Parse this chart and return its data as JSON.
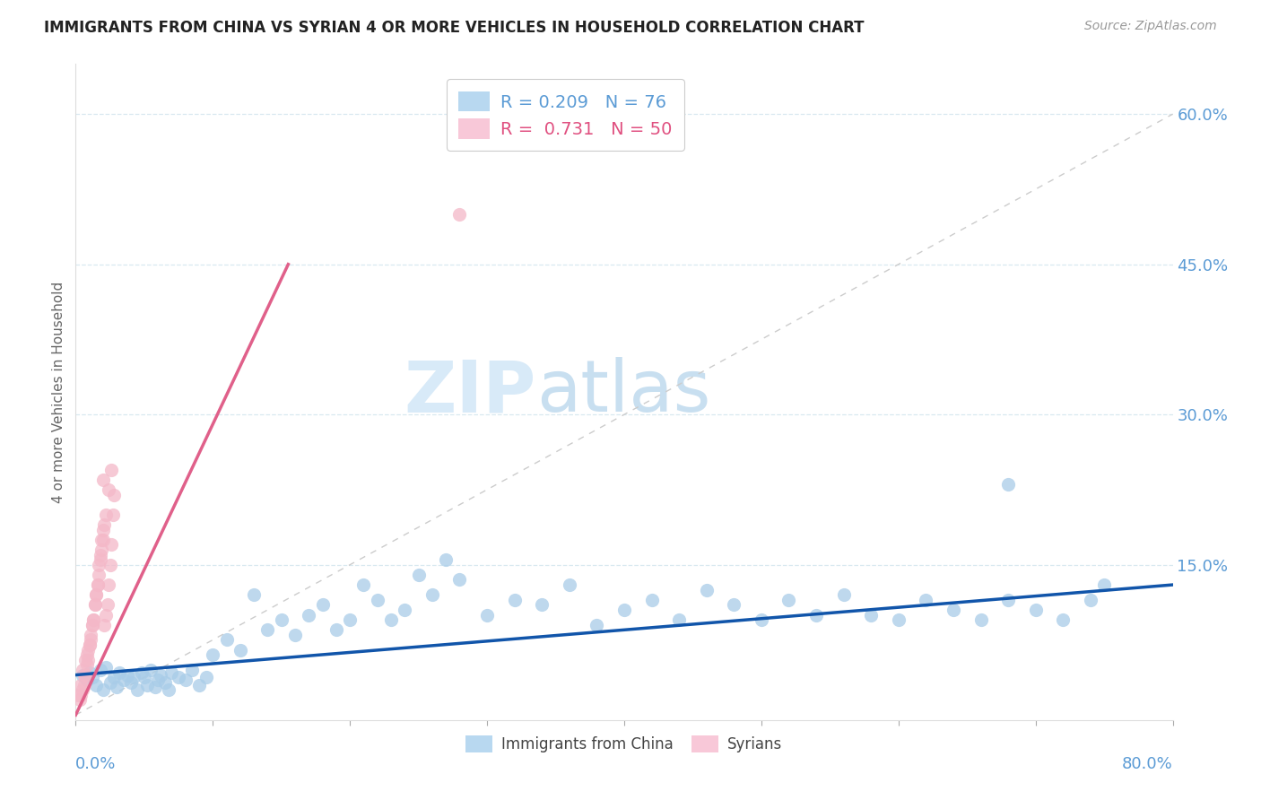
{
  "title": "IMMIGRANTS FROM CHINA VS SYRIAN 4 OR MORE VEHICLES IN HOUSEHOLD CORRELATION CHART",
  "source": "Source: ZipAtlas.com",
  "ylabel": "4 or more Vehicles in Household",
  "ytick_vals": [
    0.15,
    0.3,
    0.45,
    0.6
  ],
  "ytick_labels": [
    "15.0%",
    "30.0%",
    "45.0%",
    "60.0%"
  ],
  "xlim": [
    0.0,
    0.8
  ],
  "ylim": [
    -0.005,
    0.65
  ],
  "china_color": "#a8cce8",
  "syrian_color": "#f4b8c8",
  "china_line_color": "#1155aa",
  "syrian_line_color": "#e0608a",
  "axis_color": "#5b9bd5",
  "grid_color": "#d8e8f0",
  "ref_line_color": "#cccccc",
  "watermark_color": "#d8eaf8",
  "title_color": "#222222",
  "source_color": "#999999",
  "legend_china_label": "R = 0.209   N = 76",
  "legend_syrian_label": "R =  0.731   N = 50",
  "legend_china_color": "#5b9bd5",
  "legend_syrian_color": "#e05080",
  "bottom_legend_label_china": "Immigrants from China",
  "bottom_legend_label_syrian": "Syrians",
  "china_x": [
    0.005,
    0.008,
    0.01,
    0.012,
    0.015,
    0.018,
    0.02,
    0.022,
    0.025,
    0.028,
    0.03,
    0.032,
    0.035,
    0.038,
    0.04,
    0.042,
    0.045,
    0.048,
    0.05,
    0.052,
    0.055,
    0.058,
    0.06,
    0.062,
    0.065,
    0.068,
    0.07,
    0.075,
    0.08,
    0.085,
    0.09,
    0.095,
    0.1,
    0.11,
    0.12,
    0.13,
    0.14,
    0.15,
    0.16,
    0.17,
    0.18,
    0.19,
    0.2,
    0.21,
    0.22,
    0.23,
    0.24,
    0.25,
    0.26,
    0.27,
    0.28,
    0.3,
    0.32,
    0.34,
    0.36,
    0.38,
    0.4,
    0.42,
    0.44,
    0.46,
    0.48,
    0.5,
    0.52,
    0.54,
    0.56,
    0.58,
    0.6,
    0.62,
    0.64,
    0.66,
    0.68,
    0.7,
    0.72,
    0.74,
    0.68,
    0.75
  ],
  "china_y": [
    0.04,
    0.035,
    0.042,
    0.038,
    0.03,
    0.045,
    0.025,
    0.048,
    0.032,
    0.038,
    0.028,
    0.042,
    0.035,
    0.04,
    0.032,
    0.038,
    0.025,
    0.042,
    0.038,
    0.03,
    0.045,
    0.028,
    0.035,
    0.04,
    0.032,
    0.025,
    0.042,
    0.038,
    0.035,
    0.045,
    0.03,
    0.038,
    0.06,
    0.075,
    0.065,
    0.12,
    0.085,
    0.095,
    0.08,
    0.1,
    0.11,
    0.085,
    0.095,
    0.13,
    0.115,
    0.095,
    0.105,
    0.14,
    0.12,
    0.155,
    0.135,
    0.1,
    0.115,
    0.11,
    0.13,
    0.09,
    0.105,
    0.115,
    0.095,
    0.125,
    0.11,
    0.095,
    0.115,
    0.1,
    0.12,
    0.1,
    0.095,
    0.115,
    0.105,
    0.095,
    0.115,
    0.105,
    0.095,
    0.115,
    0.23,
    0.13
  ],
  "syrian_x": [
    0.002,
    0.004,
    0.005,
    0.006,
    0.007,
    0.008,
    0.009,
    0.01,
    0.011,
    0.012,
    0.013,
    0.014,
    0.015,
    0.016,
    0.017,
    0.018,
    0.019,
    0.02,
    0.021,
    0.022,
    0.023,
    0.024,
    0.025,
    0.026,
    0.027,
    0.028,
    0.003,
    0.005,
    0.007,
    0.009,
    0.011,
    0.013,
    0.015,
    0.017,
    0.019,
    0.021,
    0.004,
    0.006,
    0.008,
    0.01,
    0.012,
    0.014,
    0.016,
    0.018,
    0.02,
    0.022,
    0.024,
    0.026,
    0.28,
    0.02
  ],
  "syrian_y": [
    0.02,
    0.03,
    0.045,
    0.04,
    0.055,
    0.06,
    0.065,
    0.07,
    0.08,
    0.09,
    0.095,
    0.11,
    0.12,
    0.13,
    0.15,
    0.16,
    0.175,
    0.185,
    0.09,
    0.1,
    0.11,
    0.13,
    0.15,
    0.17,
    0.2,
    0.22,
    0.015,
    0.025,
    0.04,
    0.055,
    0.075,
    0.095,
    0.12,
    0.14,
    0.165,
    0.19,
    0.02,
    0.03,
    0.05,
    0.07,
    0.09,
    0.11,
    0.13,
    0.155,
    0.175,
    0.2,
    0.225,
    0.245,
    0.5,
    0.235
  ],
  "china_trend_x": [
    0.0,
    0.8
  ],
  "china_trend_y": [
    0.04,
    0.13
  ],
  "syrian_trend_x": [
    0.0,
    0.155
  ],
  "syrian_trend_y": [
    0.0,
    0.45
  ]
}
